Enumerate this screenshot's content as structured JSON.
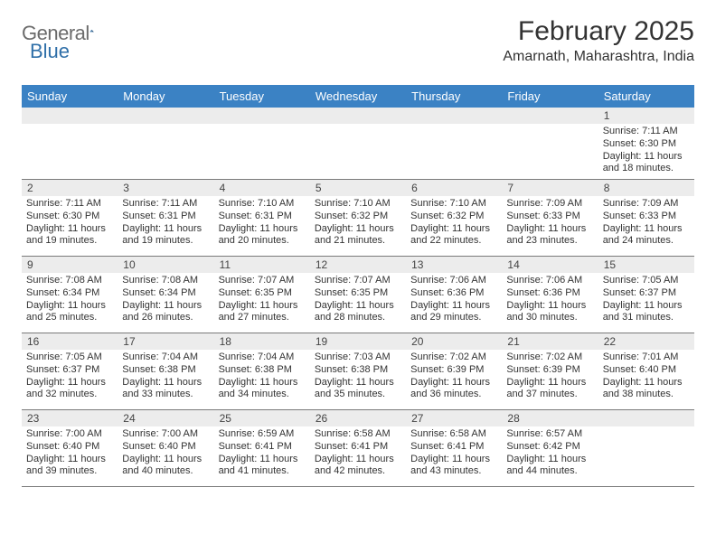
{
  "logo": {
    "text_gray": "General",
    "text_blue": "Blue"
  },
  "title": "February 2025",
  "location": "Amarnath, Maharashtra, India",
  "colors": {
    "header_bar": "#3b82c4",
    "header_text": "#ffffff",
    "daynum_bg": "#ececec",
    "rule": "#7a7a7a",
    "logo_gray": "#6b6b6b",
    "logo_blue": "#2f6fa8"
  },
  "day_names": [
    "Sunday",
    "Monday",
    "Tuesday",
    "Wednesday",
    "Thursday",
    "Friday",
    "Saturday"
  ],
  "weeks": [
    [
      null,
      null,
      null,
      null,
      null,
      null,
      {
        "n": "1",
        "sunrise": "Sunrise: 7:11 AM",
        "sunset": "Sunset: 6:30 PM",
        "day1": "Daylight: 11 hours",
        "day2": "and 18 minutes."
      }
    ],
    [
      {
        "n": "2",
        "sunrise": "Sunrise: 7:11 AM",
        "sunset": "Sunset: 6:30 PM",
        "day1": "Daylight: 11 hours",
        "day2": "and 19 minutes."
      },
      {
        "n": "3",
        "sunrise": "Sunrise: 7:11 AM",
        "sunset": "Sunset: 6:31 PM",
        "day1": "Daylight: 11 hours",
        "day2": "and 19 minutes."
      },
      {
        "n": "4",
        "sunrise": "Sunrise: 7:10 AM",
        "sunset": "Sunset: 6:31 PM",
        "day1": "Daylight: 11 hours",
        "day2": "and 20 minutes."
      },
      {
        "n": "5",
        "sunrise": "Sunrise: 7:10 AM",
        "sunset": "Sunset: 6:32 PM",
        "day1": "Daylight: 11 hours",
        "day2": "and 21 minutes."
      },
      {
        "n": "6",
        "sunrise": "Sunrise: 7:10 AM",
        "sunset": "Sunset: 6:32 PM",
        "day1": "Daylight: 11 hours",
        "day2": "and 22 minutes."
      },
      {
        "n": "7",
        "sunrise": "Sunrise: 7:09 AM",
        "sunset": "Sunset: 6:33 PM",
        "day1": "Daylight: 11 hours",
        "day2": "and 23 minutes."
      },
      {
        "n": "8",
        "sunrise": "Sunrise: 7:09 AM",
        "sunset": "Sunset: 6:33 PM",
        "day1": "Daylight: 11 hours",
        "day2": "and 24 minutes."
      }
    ],
    [
      {
        "n": "9",
        "sunrise": "Sunrise: 7:08 AM",
        "sunset": "Sunset: 6:34 PM",
        "day1": "Daylight: 11 hours",
        "day2": "and 25 minutes."
      },
      {
        "n": "10",
        "sunrise": "Sunrise: 7:08 AM",
        "sunset": "Sunset: 6:34 PM",
        "day1": "Daylight: 11 hours",
        "day2": "and 26 minutes."
      },
      {
        "n": "11",
        "sunrise": "Sunrise: 7:07 AM",
        "sunset": "Sunset: 6:35 PM",
        "day1": "Daylight: 11 hours",
        "day2": "and 27 minutes."
      },
      {
        "n": "12",
        "sunrise": "Sunrise: 7:07 AM",
        "sunset": "Sunset: 6:35 PM",
        "day1": "Daylight: 11 hours",
        "day2": "and 28 minutes."
      },
      {
        "n": "13",
        "sunrise": "Sunrise: 7:06 AM",
        "sunset": "Sunset: 6:36 PM",
        "day1": "Daylight: 11 hours",
        "day2": "and 29 minutes."
      },
      {
        "n": "14",
        "sunrise": "Sunrise: 7:06 AM",
        "sunset": "Sunset: 6:36 PM",
        "day1": "Daylight: 11 hours",
        "day2": "and 30 minutes."
      },
      {
        "n": "15",
        "sunrise": "Sunrise: 7:05 AM",
        "sunset": "Sunset: 6:37 PM",
        "day1": "Daylight: 11 hours",
        "day2": "and 31 minutes."
      }
    ],
    [
      {
        "n": "16",
        "sunrise": "Sunrise: 7:05 AM",
        "sunset": "Sunset: 6:37 PM",
        "day1": "Daylight: 11 hours",
        "day2": "and 32 minutes."
      },
      {
        "n": "17",
        "sunrise": "Sunrise: 7:04 AM",
        "sunset": "Sunset: 6:38 PM",
        "day1": "Daylight: 11 hours",
        "day2": "and 33 minutes."
      },
      {
        "n": "18",
        "sunrise": "Sunrise: 7:04 AM",
        "sunset": "Sunset: 6:38 PM",
        "day1": "Daylight: 11 hours",
        "day2": "and 34 minutes."
      },
      {
        "n": "19",
        "sunrise": "Sunrise: 7:03 AM",
        "sunset": "Sunset: 6:38 PM",
        "day1": "Daylight: 11 hours",
        "day2": "and 35 minutes."
      },
      {
        "n": "20",
        "sunrise": "Sunrise: 7:02 AM",
        "sunset": "Sunset: 6:39 PM",
        "day1": "Daylight: 11 hours",
        "day2": "and 36 minutes."
      },
      {
        "n": "21",
        "sunrise": "Sunrise: 7:02 AM",
        "sunset": "Sunset: 6:39 PM",
        "day1": "Daylight: 11 hours",
        "day2": "and 37 minutes."
      },
      {
        "n": "22",
        "sunrise": "Sunrise: 7:01 AM",
        "sunset": "Sunset: 6:40 PM",
        "day1": "Daylight: 11 hours",
        "day2": "and 38 minutes."
      }
    ],
    [
      {
        "n": "23",
        "sunrise": "Sunrise: 7:00 AM",
        "sunset": "Sunset: 6:40 PM",
        "day1": "Daylight: 11 hours",
        "day2": "and 39 minutes."
      },
      {
        "n": "24",
        "sunrise": "Sunrise: 7:00 AM",
        "sunset": "Sunset: 6:40 PM",
        "day1": "Daylight: 11 hours",
        "day2": "and 40 minutes."
      },
      {
        "n": "25",
        "sunrise": "Sunrise: 6:59 AM",
        "sunset": "Sunset: 6:41 PM",
        "day1": "Daylight: 11 hours",
        "day2": "and 41 minutes."
      },
      {
        "n": "26",
        "sunrise": "Sunrise: 6:58 AM",
        "sunset": "Sunset: 6:41 PM",
        "day1": "Daylight: 11 hours",
        "day2": "and 42 minutes."
      },
      {
        "n": "27",
        "sunrise": "Sunrise: 6:58 AM",
        "sunset": "Sunset: 6:41 PM",
        "day1": "Daylight: 11 hours",
        "day2": "and 43 minutes."
      },
      {
        "n": "28",
        "sunrise": "Sunrise: 6:57 AM",
        "sunset": "Sunset: 6:42 PM",
        "day1": "Daylight: 11 hours",
        "day2": "and 44 minutes."
      },
      null
    ]
  ]
}
